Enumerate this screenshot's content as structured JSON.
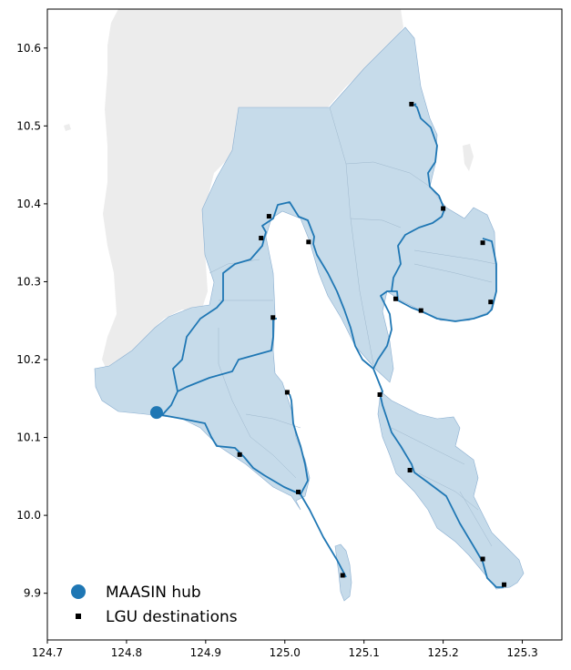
{
  "chart_data": {
    "type": "map",
    "xlim": [
      124.7,
      125.35
    ],
    "ylim": [
      9.84,
      10.65
    ],
    "x_ticks": [
      "124.7",
      "124.8",
      "124.9",
      "125.0",
      "125.1",
      "125.2",
      "125.3"
    ],
    "y_ticks": [
      "9.9",
      "10.0",
      "10.1",
      "10.2",
      "10.3",
      "10.4",
      "10.5",
      "10.6"
    ],
    "grid": false,
    "legend_position": "lower-left",
    "colors": {
      "background_land": "#ececec",
      "province_fill": "#c6dbea",
      "route": "#1f77b4",
      "hub": "#1f77b4",
      "destination": "#000000"
    },
    "hub": {
      "name": "MAASIN hub",
      "lon": 124.838,
      "lat": 10.132
    },
    "destinations": [
      {
        "lon": 125.16,
        "lat": 10.528
      },
      {
        "lon": 125.2,
        "lat": 10.394
      },
      {
        "lon": 124.98,
        "lat": 10.384
      },
      {
        "lon": 124.97,
        "lat": 10.356
      },
      {
        "lon": 125.03,
        "lat": 10.351
      },
      {
        "lon": 125.25,
        "lat": 10.35
      },
      {
        "lon": 125.26,
        "lat": 10.274
      },
      {
        "lon": 125.14,
        "lat": 10.278
      },
      {
        "lon": 125.172,
        "lat": 10.263
      },
      {
        "lon": 124.985,
        "lat": 10.254
      },
      {
        "lon": 125.003,
        "lat": 10.158
      },
      {
        "lon": 125.12,
        "lat": 10.155
      },
      {
        "lon": 124.943,
        "lat": 10.078
      },
      {
        "lon": 125.158,
        "lat": 10.058
      },
      {
        "lon": 125.017,
        "lat": 10.03
      },
      {
        "lon": 125.25,
        "lat": 9.944
      },
      {
        "lon": 125.073,
        "lat": 9.923
      },
      {
        "lon": 125.277,
        "lat": 9.911
      }
    ],
    "legend": [
      {
        "label": "MAASIN hub",
        "marker": "circle"
      },
      {
        "label": "LGU destinations",
        "marker": "square"
      }
    ]
  }
}
